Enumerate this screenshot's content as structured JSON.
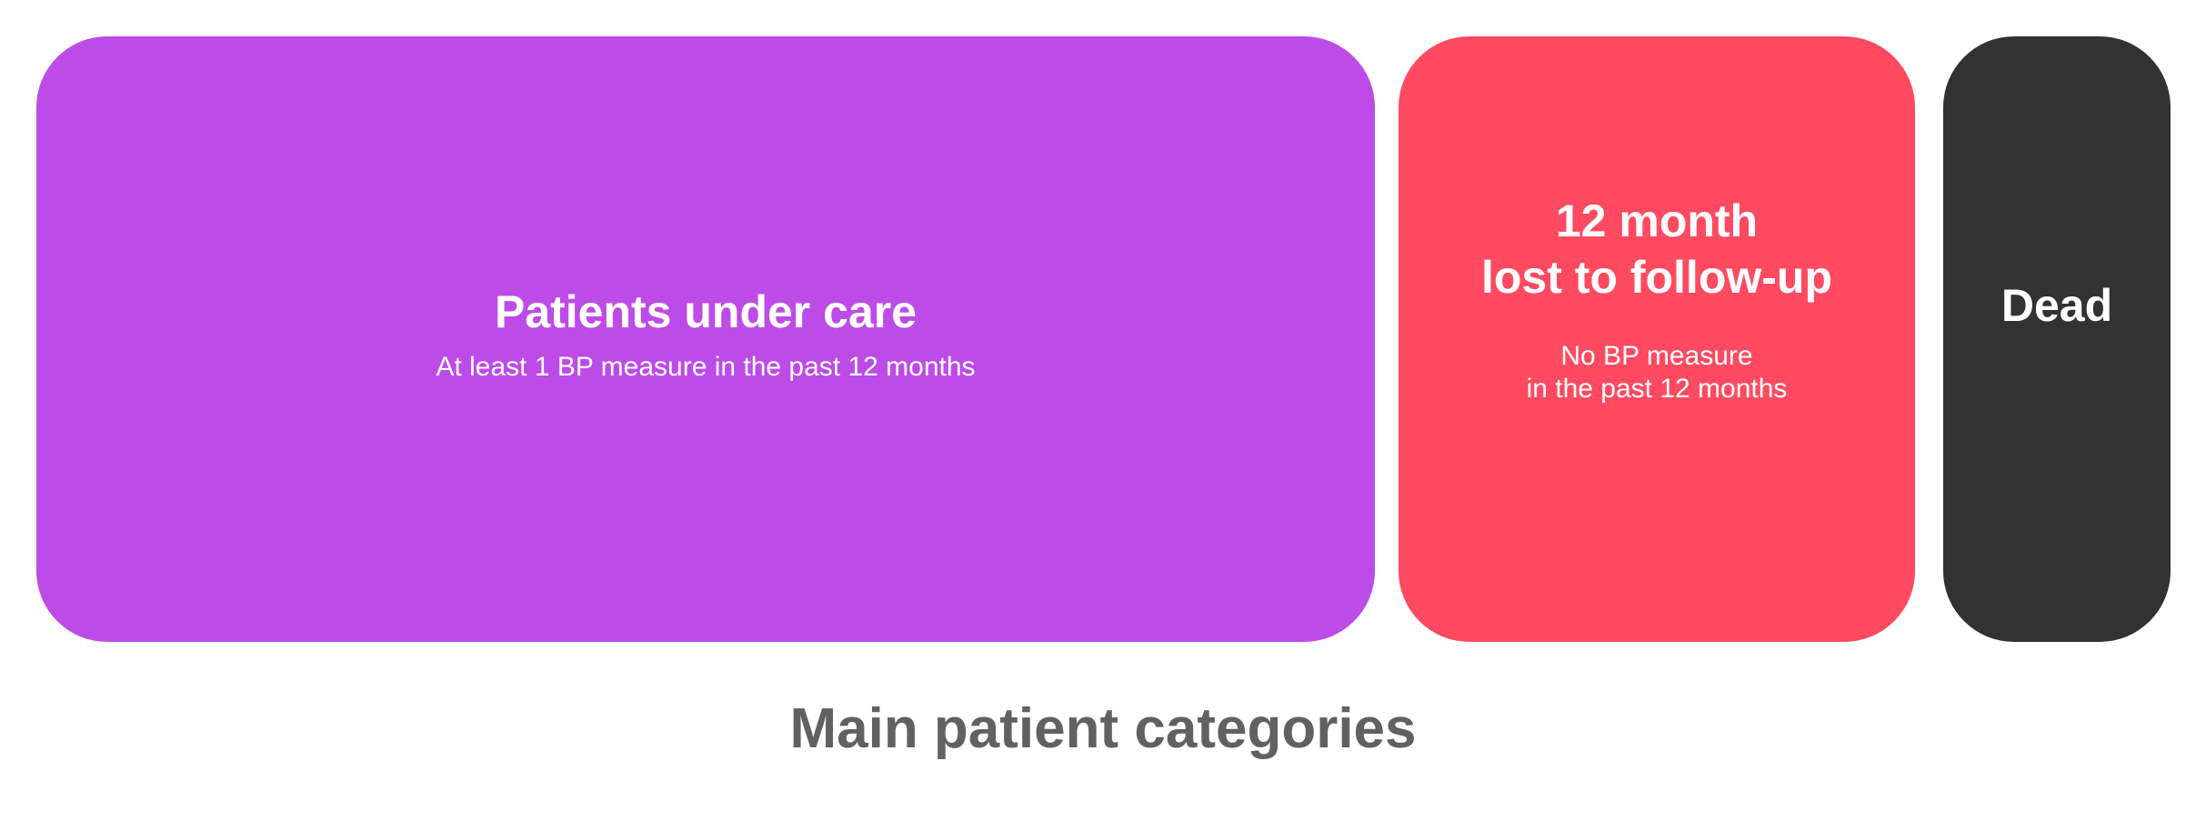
{
  "colors": {
    "under_care": "#bd4be8",
    "lost_to_follow_up": "#ff4a61",
    "dead": "#323232",
    "caption": "#616161",
    "card_text": "#ffffff"
  },
  "categories": [
    {
      "title_lines": [
        "Patients under care"
      ],
      "subtitle_lines": [
        "At least 1 BP measure in the past 12 months"
      ]
    },
    {
      "title_lines": [
        "12 month",
        "lost to follow-up"
      ],
      "subtitle_lines": [
        "No BP measure",
        "in the past 12 months"
      ]
    },
    {
      "title_lines": [
        "Dead"
      ],
      "subtitle_lines": []
    }
  ],
  "caption": "Main patient categories"
}
